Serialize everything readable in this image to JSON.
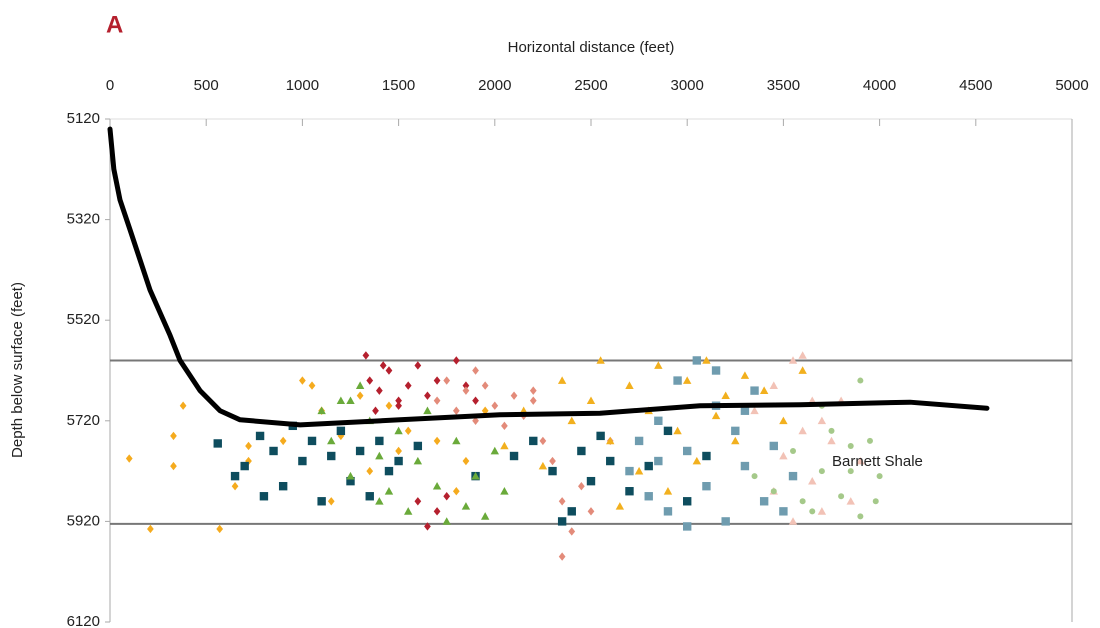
{
  "chart_data": {
    "type": "scatter",
    "panel_label": "A",
    "xlabel": "Horizontal distance (feet)",
    "ylabel": "Depth below surface (feet)",
    "annotation": "Barnett Shale",
    "xlim": [
      0,
      5000
    ],
    "xticks": [
      0,
      500,
      1000,
      1500,
      2000,
      2500,
      3000,
      3500,
      4000,
      4500,
      5000
    ],
    "ylim": [
      6120,
      5120
    ],
    "yticks": [
      5120,
      5320,
      5520,
      5720,
      5920,
      6120
    ],
    "reference_lines": [
      5600,
      5925
    ],
    "well_path": {
      "color": "#000000",
      "x": [
        0,
        20,
        52,
        104,
        208,
        312,
        364,
        468,
        572,
        676,
        988,
        1507,
        2027,
        2547,
        3067,
        3586,
        4158,
        4558
      ],
      "values": [
        5140,
        5220,
        5281,
        5340,
        5460,
        5550,
        5600,
        5660,
        5700,
        5718,
        5728,
        5718,
        5708,
        5705,
        5690,
        5688,
        5683,
        5695
      ]
    },
    "series": [
      {
        "color": "#f5ab1e",
        "marker": "diamond",
        "x": [
          100,
          210,
          330,
          330,
          380,
          570,
          720,
          720,
          900,
          1050,
          1100,
          1200,
          1300,
          1350,
          1500,
          1550,
          1700,
          1800,
          1850,
          1950,
          650,
          1000,
          1150,
          1450
        ],
        "values": [
          5795,
          5935,
          5810,
          5750,
          5690,
          5935,
          5800,
          5770,
          5760,
          5650,
          5700,
          5750,
          5670,
          5820,
          5780,
          5740,
          5760,
          5860,
          5800,
          5700,
          5850,
          5640,
          5880,
          5690
        ]
      },
      {
        "color": "#0e4d5e",
        "marker": "square",
        "x": [
          560,
          700,
          780,
          800,
          850,
          900,
          950,
          1000,
          1050,
          1100,
          1150,
          1200,
          1250,
          1300,
          1350,
          1400,
          1450,
          1500,
          1600,
          1900,
          2100,
          2200,
          2300,
          2400,
          2450,
          2500,
          2550,
          2600,
          2700,
          2800,
          2900,
          3000,
          3100,
          2350,
          650
        ],
        "values": [
          5765,
          5810,
          5750,
          5870,
          5780,
          5850,
          5730,
          5800,
          5760,
          5880,
          5790,
          5740,
          5840,
          5780,
          5870,
          5760,
          5820,
          5800,
          5770,
          5830,
          5790,
          5760,
          5820,
          5900,
          5780,
          5840,
          5750,
          5800,
          5860,
          5810,
          5740,
          5880,
          5790,
          5920,
          5830
        ]
      },
      {
        "color": "#b5202e",
        "marker": "diamond",
        "x": [
          1350,
          1400,
          1450,
          1500,
          1380,
          1550,
          1600,
          1650,
          1700,
          1800,
          1850,
          1900,
          1750,
          1700,
          1650,
          1600,
          1500,
          1420,
          1330
        ],
        "values": [
          5640,
          5660,
          5620,
          5680,
          5700,
          5650,
          5610,
          5670,
          5640,
          5600,
          5650,
          5680,
          5870,
          5900,
          5930,
          5880,
          5690,
          5610,
          5590
        ]
      },
      {
        "color": "#6aaa3a",
        "marker": "triangle",
        "x": [
          1100,
          1150,
          1200,
          1250,
          1300,
          1350,
          1400,
          1450,
          1500,
          1550,
          1600,
          1650,
          1700,
          1750,
          1800,
          1850,
          1900,
          1950,
          2000,
          2050,
          1400,
          1250
        ],
        "values": [
          5700,
          5760,
          5680,
          5830,
          5650,
          5720,
          5790,
          5860,
          5740,
          5900,
          5800,
          5700,
          5850,
          5920,
          5760,
          5890,
          5830,
          5910,
          5780,
          5860,
          5880,
          5680
        ]
      },
      {
        "color": "#e38b7a",
        "marker": "diamond",
        "x": [
          1700,
          1750,
          1800,
          1850,
          1900,
          1950,
          2000,
          2050,
          2100,
          2150,
          2200,
          2250,
          2300,
          2350,
          2400,
          2450,
          2500,
          2350,
          2200,
          1900,
          2600
        ],
        "values": [
          5680,
          5640,
          5700,
          5660,
          5720,
          5650,
          5690,
          5730,
          5670,
          5710,
          5680,
          5760,
          5800,
          5880,
          5940,
          5850,
          5900,
          5990,
          5660,
          5620,
          5760
        ]
      },
      {
        "color": "#f2b01e",
        "marker": "triangle",
        "x": [
          2050,
          2150,
          2250,
          2350,
          2400,
          2500,
          2550,
          2600,
          2700,
          2750,
          2800,
          2850,
          2900,
          2950,
          3000,
          3050,
          3100,
          3150,
          3200,
          3300,
          3400,
          3500,
          3600,
          2650,
          3250
        ],
        "values": [
          5770,
          5700,
          5810,
          5640,
          5720,
          5680,
          5600,
          5760,
          5650,
          5820,
          5700,
          5610,
          5860,
          5740,
          5640,
          5800,
          5600,
          5710,
          5670,
          5630,
          5660,
          5720,
          5620,
          5890,
          5760
        ]
      },
      {
        "color": "#6f9caf",
        "marker": "square",
        "x": [
          2700,
          2750,
          2800,
          2850,
          2900,
          2950,
          3000,
          3050,
          3100,
          3150,
          3200,
          3250,
          3300,
          3350,
          3400,
          3450,
          3500,
          3550,
          3000,
          3150,
          3300,
          2850
        ],
        "values": [
          5820,
          5760,
          5870,
          5720,
          5900,
          5640,
          5780,
          5600,
          5850,
          5690,
          5920,
          5740,
          5810,
          5660,
          5880,
          5770,
          5900,
          5830,
          5930,
          5620,
          5700,
          5800
        ]
      },
      {
        "color": "#f2c2b6",
        "marker": "triangle",
        "x": [
          3350,
          3450,
          3500,
          3550,
          3600,
          3650,
          3700,
          3700,
          3750,
          3800,
          3850,
          3550,
          3450,
          3600,
          3900,
          3650
        ],
        "values": [
          5700,
          5650,
          5790,
          5600,
          5590,
          5840,
          5720,
          5900,
          5760,
          5680,
          5880,
          5920,
          5860,
          5740,
          5800,
          5680
        ]
      },
      {
        "color": "#a5c98a",
        "marker": "circle",
        "x": [
          3350,
          3450,
          3550,
          3650,
          3700,
          3750,
          3800,
          3850,
          3900,
          3950,
          3980,
          4000,
          3900,
          3700,
          3850,
          3600
        ],
        "values": [
          5830,
          5860,
          5780,
          5900,
          5820,
          5740,
          5870,
          5770,
          5910,
          5760,
          5880,
          5830,
          5640,
          5690,
          5820,
          5880
        ]
      }
    ]
  }
}
